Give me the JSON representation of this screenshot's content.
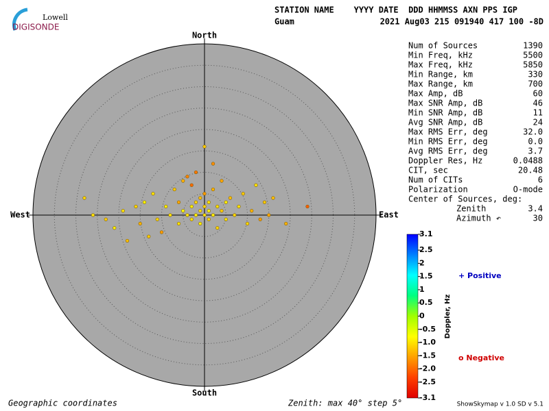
{
  "chart_data": {
    "type": "scatter",
    "logo": {
      "top": "Lowell",
      "bottom": "DIGISONDE"
    },
    "header": {
      "columns": "STATION NAME    YYYY DATE  DDD HHMMSS AXN PPS IGP",
      "station": "Guam",
      "values": "2021 Aug03 215 091940 417 100 -8D"
    },
    "directions": {
      "north": "North",
      "south": "South",
      "east": "East",
      "west": "West"
    },
    "rlim": [
      0,
      40
    ],
    "rticks": [
      5,
      10,
      15,
      20,
      25,
      30,
      35,
      40
    ],
    "x": [
      -28,
      -26,
      -23,
      -21,
      -19,
      -18,
      -16,
      -15,
      -14,
      -13,
      -12,
      -11,
      -10,
      -9,
      -8,
      -7,
      -6,
      -6,
      -5,
      -5,
      -4,
      -4,
      -3,
      -3,
      -3,
      -2,
      -2,
      -2,
      -1,
      -1,
      -1,
      0,
      0,
      0,
      0,
      1,
      1,
      1,
      2,
      2,
      2,
      3,
      3,
      4,
      4,
      5,
      5,
      6,
      7,
      8,
      9,
      10,
      11,
      12,
      13,
      14,
      15,
      16,
      19,
      24
    ],
    "y": [
      4,
      0,
      -1,
      -3,
      1,
      -6,
      2,
      -2,
      3,
      -5,
      5,
      -1,
      -4,
      2,
      0,
      6,
      -2,
      3,
      1,
      8,
      0,
      9,
      2,
      -1,
      7,
      3,
      0,
      10,
      1,
      4,
      -2,
      0,
      2,
      5,
      16,
      1,
      3,
      -1,
      0,
      12,
      6,
      2,
      -3,
      1,
      8,
      3,
      -1,
      4,
      0,
      2,
      5,
      -2,
      1,
      7,
      -1,
      3,
      0,
      4,
      -2,
      2
    ],
    "doppler": [
      -1.1,
      -1.0,
      -1.2,
      -0.9,
      -1.0,
      -1.3,
      -1.1,
      -1.4,
      -0.8,
      -1.2,
      -1.0,
      -1.1,
      -1.6,
      -0.9,
      -1.0,
      -1.2,
      -1.0,
      -1.5,
      -0.8,
      -1.4,
      -1.0,
      -1.8,
      -0.9,
      -1.0,
      -2.0,
      -1.1,
      -0.9,
      -1.9,
      -1.0,
      -1.3,
      -0.9,
      -1.0,
      -1.1,
      -1.6,
      -1.2,
      -0.8,
      -1.0,
      -1.1,
      -0.9,
      -1.7,
      -1.4,
      -1.0,
      -1.1,
      -1.2,
      -1.5,
      -0.9,
      -1.0,
      -1.3,
      -1.1,
      -1.0,
      -1.2,
      -1.1,
      -1.4,
      -1.0,
      -1.6,
      -1.2,
      -1.5,
      -1.3,
      -1.4,
      -2.1
    ],
    "clim": [
      -3.1,
      3.1
    ],
    "colorscale": [
      "#0000ff",
      "#0080ff",
      "#00ffff",
      "#00ff80",
      "#a0ff00",
      "#ffff00",
      "#ffa000",
      "#ff4000",
      "#e00000"
    ],
    "cticks": [
      3.1,
      2.5,
      2,
      1.5,
      1,
      0.5,
      0,
      -0.5,
      {
        "value": -1,
        "label": "-1.0"
      },
      -1.5,
      {
        "value": -2,
        "label": "-2.0"
      },
      -2.5,
      -3.1
    ],
    "colorbar_label": "Doppler, Hz",
    "legend": {
      "positive": "+ Positive",
      "negative": "o Negative"
    },
    "stats": [
      [
        "Num of Sources",
        "1390"
      ],
      [
        "Min Freq, kHz",
        "5500"
      ],
      [
        "Max Freq, kHz",
        "5850"
      ],
      [
        "Min Range, km",
        "330"
      ],
      [
        "Max Range, km",
        "700"
      ],
      [
        "Max Amp, dB",
        "60"
      ],
      [
        "Max SNR Amp, dB",
        "46"
      ],
      [
        "Min SNR Amp, dB",
        "11"
      ],
      [
        "Avg SNR Amp, dB",
        "24"
      ],
      [
        "Max RMS Err, deg",
        "32.0"
      ],
      [
        "Min RMS Err, deg",
        "0.0"
      ],
      [
        "Avg RMS Err, deg",
        "3.7"
      ],
      [
        "Doppler Res, Hz",
        "0.0488"
      ],
      [
        "CIT, sec",
        "20.48"
      ],
      [
        "Num of CITs",
        "6"
      ],
      [
        "Polarization",
        "O-mode"
      ]
    ],
    "center_title": "Center of Sources, deg:",
    "center": [
      [
        "Zenith",
        "3.4"
      ],
      [
        "Azimuth ↶",
        "30"
      ]
    ],
    "footer": {
      "left": "Geographic coordinates",
      "mid": "Zenith: max 40°  step 5°",
      "right": "ShowSkymap v 1.0  SD v 5.1"
    }
  }
}
